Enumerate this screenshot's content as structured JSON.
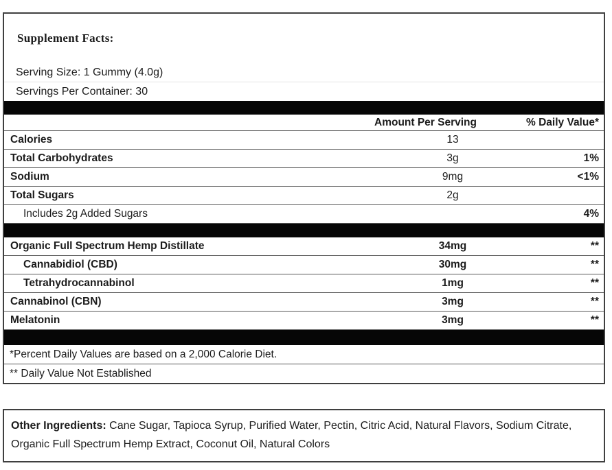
{
  "title": "Supplement Facts:",
  "serving": {
    "size": "Serving Size: 1 Gummy (4.0g)",
    "per_container": "Servings Per Container: 30"
  },
  "table": {
    "headers": {
      "amount": "Amount Per Serving",
      "dv": "% Daily Value*"
    },
    "nutrient_rows": [
      {
        "label": "Calories",
        "amount": "13",
        "dv": ""
      },
      {
        "label": "Total Carbohydrates",
        "amount": "3g",
        "dv": "1%"
      },
      {
        "label": "Sodium",
        "amount": "9mg",
        "dv": "<1%"
      },
      {
        "label": "Total Sugars",
        "amount": "2g",
        "dv": ""
      },
      {
        "label": "Includes 2g Added Sugars",
        "amount": "",
        "dv": "4%",
        "indent": true,
        "label_bold": false
      }
    ],
    "supplement_rows": [
      {
        "label": "Organic Full Spectrum Hemp Distillate",
        "amount": "34mg",
        "dv": "**"
      },
      {
        "label": "Cannabidiol (CBD)",
        "amount": "30mg",
        "dv": "**",
        "indent": true
      },
      {
        "label": "Tetrahydrocannabinol",
        "amount": "1mg",
        "dv": "**",
        "indent": true
      },
      {
        "label": "Cannabinol (CBN)",
        "amount": "3mg",
        "dv": "**"
      },
      {
        "label": "Melatonin",
        "amount": "3mg",
        "dv": "**"
      }
    ],
    "footnotes": [
      {
        "text": "*Percent Daily Values are based on a 2,000 Calorie Diet."
      },
      {
        "text": "** Daily Value Not Established"
      }
    ]
  },
  "other_ingredients": {
    "label": "Other Ingredients:",
    "text": " Cane Sugar, Tapioca Syrup, Purified Water, Pectin, Citric Acid, Natural Flavors, Sodium Citrate, Organic Full Spectrum Hemp Extract, Coconut Oil, Natural Colors"
  },
  "colors": {
    "text": "#1c1c1c",
    "row_border": "#555555",
    "outer_border": "#3f3f3f",
    "divider_bar": "#060606",
    "background": "#ffffff"
  }
}
